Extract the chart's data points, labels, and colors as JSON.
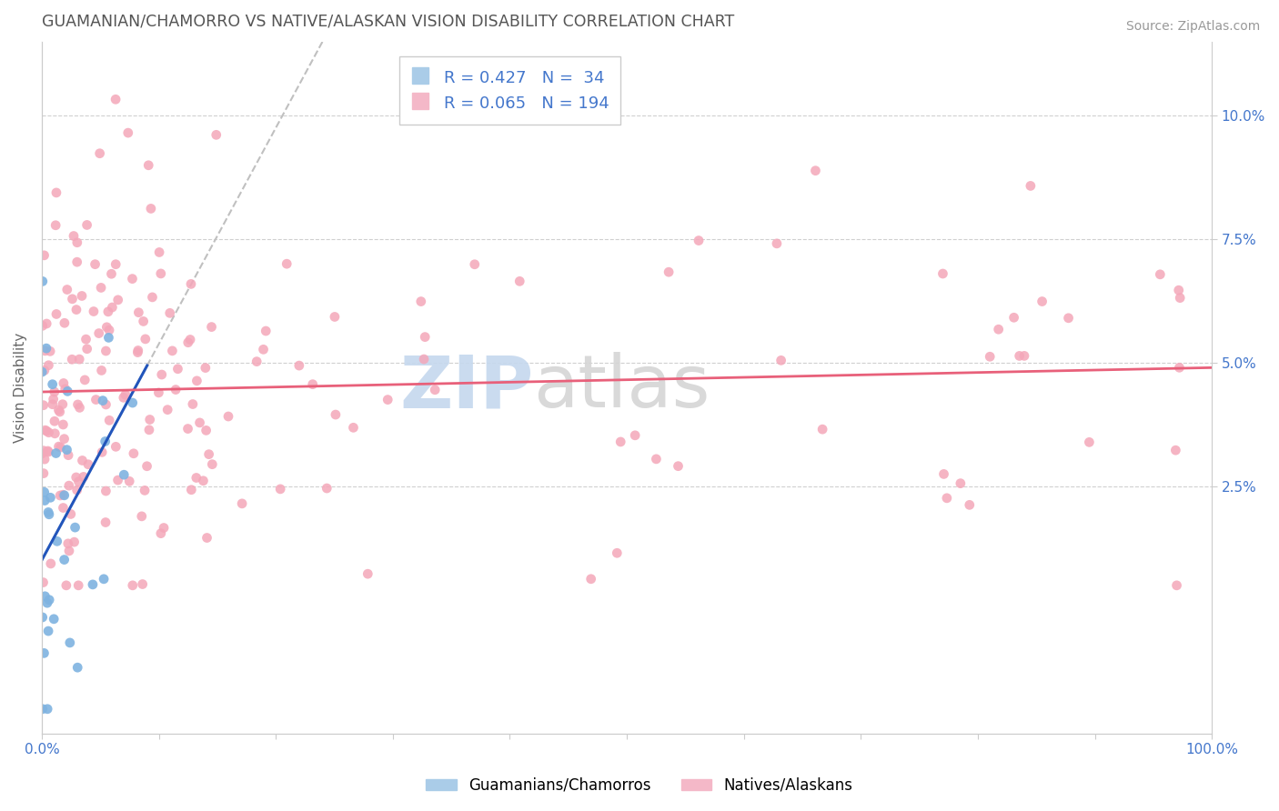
{
  "title": "GUAMANIAN/CHAMORRO VS NATIVE/ALASKAN VISION DISABILITY CORRELATION CHART",
  "source": "Source: ZipAtlas.com",
  "ylabel": "Vision Disability",
  "xlim": [
    0.0,
    1.0
  ],
  "ylim": [
    -0.025,
    0.115
  ],
  "r_blue": 0.427,
  "n_blue": 34,
  "r_pink": 0.065,
  "n_pink": 194,
  "blue_color": "#7fb3e0",
  "pink_color": "#f4a7b9",
  "trend_blue_color": "#2255bb",
  "trend_pink_color": "#e8607a",
  "trend_dash_color": "#c0c0c0",
  "legend_label_blue": "Guamanians/Chamorros",
  "legend_label_pink": "Natives/Alaskans",
  "title_color": "#555555",
  "axis_tick_color": "#4477cc",
  "grid_color": "#d0d0d0",
  "source_color": "#999999",
  "watermark_zip_color": "#d0dff0",
  "watermark_atlas_color": "#d8d8d8"
}
